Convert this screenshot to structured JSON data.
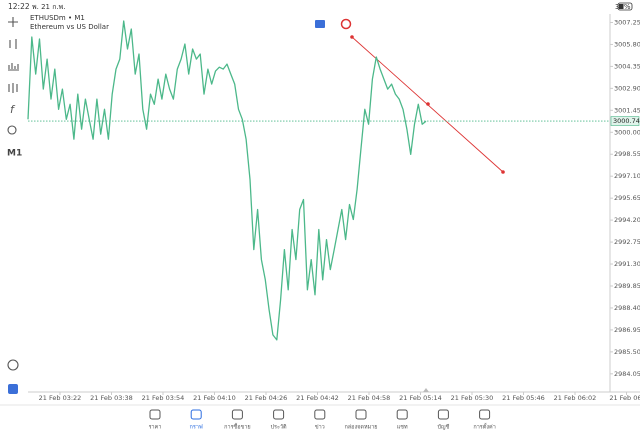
{
  "status_bar": {
    "time": "12:22",
    "date": "พ. 21 ก.พ.",
    "battery": "32%"
  },
  "chart_data": {
    "type": "line",
    "title": "ETHUSDm • M1",
    "subtitle": "Ethereum vs US Dollar",
    "timeframe": "M1",
    "series": [
      {
        "color": "#4cb88a",
        "values": [
          3000.86,
          3006.29,
          3003.84,
          3006.16,
          3002.85,
          3004.83,
          3002.19,
          3004.17,
          3001.52,
          3002.85,
          3000.86,
          3001.85,
          2999.54,
          3002.52,
          3000.2,
          3002.19,
          3000.86,
          2999.54,
          3002.19,
          2999.87,
          3001.52,
          2999.54,
          3002.52,
          3004.17,
          3004.83,
          3007.35,
          3005.5,
          3006.82,
          3003.84,
          3005.17,
          3001.52,
          3000.2,
          3002.52,
          3001.85,
          3003.51,
          3002.19,
          3003.84,
          3002.85,
          3002.19,
          3004.17,
          3004.83,
          3005.83,
          3003.84,
          3005.5,
          3004.83,
          3005.17,
          3002.52,
          3004.17,
          3003.18,
          3004.04,
          3004.3,
          3004.17,
          3004.5,
          3003.84,
          3003.18,
          3001.52,
          3000.86,
          2999.54,
          2996.89,
          2992.25,
          2994.9,
          2991.59,
          2990.26,
          2988.28,
          2986.62,
          2986.29,
          2988.94,
          2992.25,
          2989.6,
          2993.58,
          2991.59,
          2994.9,
          2995.56,
          2989.6,
          2991.59,
          2989.27,
          2993.58,
          2990.26,
          2992.91,
          2990.93,
          2992.25,
          2993.58,
          2994.9,
          2992.91,
          2995.23,
          2994.24,
          2996.23,
          2998.87,
          3001.52,
          3000.53,
          3003.51,
          3004.97,
          3004.17,
          3003.51,
          3002.85,
          3003.18,
          3002.52,
          3002.19,
          3001.52,
          3000.2,
          2998.54,
          3000.53,
          3001.85,
          3000.53,
          3000.73
        ]
      }
    ],
    "current_price": 3000.74,
    "ylim": [
      2982.85,
      3007.81
    ],
    "yticks": [
      3007.25,
      {
        "value": 3005.8,
        "label": "3005.80"
      },
      3004.35,
      {
        "value": 3002.9,
        "label": "3002.90"
      },
      3001.45,
      {
        "value": 3000,
        "label": "3000.00"
      },
      2998.55,
      {
        "value": 2997.1,
        "label": "2997.10"
      },
      2995.65,
      {
        "value": 2994.2,
        "label": "2994.20"
      },
      2992.75,
      {
        "value": 2991.3,
        "label": "2991.30"
      },
      2989.85,
      {
        "value": 2988.4,
        "label": "2988.40"
      },
      2986.95,
      {
        "value": 2985.5,
        "label": "2985.50"
      },
      2984.05
    ],
    "xtick_labels": [
      "21 Feb 03:22",
      "21 Feb 03:38",
      "21 Feb 03:54",
      "21 Feb 04:10",
      "21 Feb 04:26",
      "21 Feb 04:42",
      "21 Feb 04:58",
      "21 Feb 05:14",
      "21 Feb 05:30",
      "21 Feb 05:46",
      "21 Feb 06:02",
      "21 Feb 06:"
    ]
  },
  "nav": [
    "ราคา",
    "กราฟ",
    "การซื้อขาย",
    "ประวัติ",
    "ข่าว",
    "กล่องจดหมาย",
    "แชท",
    "บัญชี",
    "การตั้งค่า"
  ]
}
